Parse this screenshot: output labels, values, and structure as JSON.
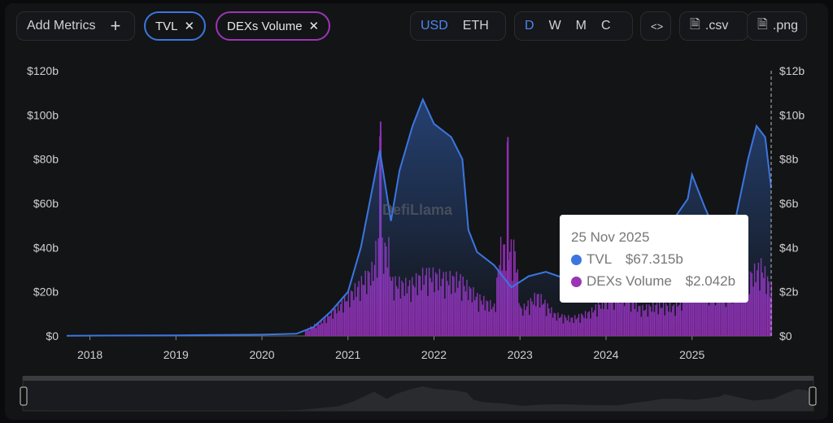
{
  "toolbar": {
    "add_metrics": "Add Metrics",
    "plus": "+",
    "metrics": [
      {
        "label": "TVL",
        "color": "#3b76e0"
      },
      {
        "label": "DEXs Volume",
        "color": "#9b35b5"
      }
    ],
    "close": "✕",
    "currency": [
      "USD",
      "ETH"
    ],
    "currency_active": "USD",
    "intervals": [
      "D",
      "W",
      "M",
      "C"
    ],
    "interval_active": "D",
    "embed": "<>",
    "csv": ".csv",
    "png": ".png"
  },
  "watermark": "DefiLlama",
  "tooltip": {
    "date": "25 Nov 2025",
    "rows": [
      {
        "label": "TVL",
        "value": "$67.315b",
        "color": "#3b76e0"
      },
      {
        "label": "DEXs Volume",
        "value": "$2.042b",
        "color": "#9b35b5"
      }
    ]
  },
  "chart_data": {
    "type": "line+bar",
    "x_ticks": [
      "2018",
      "2019",
      "2020",
      "2021",
      "2022",
      "2023",
      "2024",
      "2025"
    ],
    "y_left_ticks": [
      "$0",
      "$20b",
      "$40b",
      "$60b",
      "$80b",
      "$100b",
      "$120b"
    ],
    "y_right_ticks": [
      "$0",
      "$2b",
      "$4b",
      "$6b",
      "$8b",
      "$10b",
      "$12b"
    ],
    "y_left_range": [
      0,
      120
    ],
    "y_right_range": [
      0,
      12
    ],
    "x_range": [
      2017.73,
      2025.92
    ],
    "series": [
      {
        "name": "TVL",
        "axis": "left",
        "type": "line",
        "color": "#3b76e0",
        "x": [
          2017.73,
          2019,
          2020,
          2020.4,
          2020.6,
          2020.8,
          2021,
          2021.15,
          2021.3,
          2021.37,
          2021.5,
          2021.6,
          2021.75,
          2021.87,
          2022.0,
          2022.2,
          2022.33,
          2022.4,
          2022.5,
          2022.7,
          2022.9,
          2023.1,
          2023.3,
          2023.6,
          2023.9,
          2024.0,
          2024.2,
          2024.35,
          2024.5,
          2024.7,
          2024.95,
          2025.0,
          2025.15,
          2025.3,
          2025.5,
          2025.65,
          2025.75,
          2025.85,
          2025.92
        ],
        "y": [
          0.1,
          0.3,
          0.6,
          1,
          4,
          11,
          20,
          40,
          70,
          84,
          52,
          75,
          95,
          107,
          96,
          90,
          80,
          48,
          38,
          32,
          22,
          27,
          29,
          25,
          24,
          31,
          42,
          52,
          53,
          48,
          62,
          73,
          58,
          45,
          52,
          80,
          95,
          90,
          67
        ]
      },
      {
        "name": "DEXs Volume",
        "axis": "right",
        "type": "bar",
        "color": "#9b35b5",
        "x": [
          2020.5,
          2020.7,
          2020.9,
          2021.1,
          2021.3,
          2021.37,
          2021.5,
          2021.7,
          2021.9,
          2022.1,
          2022.3,
          2022.5,
          2022.7,
          2022.85,
          2023.0,
          2023.2,
          2023.4,
          2023.6,
          2023.8,
          2024.0,
          2024.2,
          2024.4,
          2024.6,
          2024.8,
          2025.0,
          2025.2,
          2025.4,
          2025.6,
          2025.8,
          2025.9
        ],
        "y": [
          0.3,
          0.8,
          1.6,
          2.5,
          3.5,
          9.7,
          2.8,
          2.6,
          3.2,
          3,
          2.9,
          2,
          1.5,
          9,
          1.3,
          2.1,
          1.1,
          0.9,
          1.2,
          1.9,
          2.2,
          1.4,
          1.6,
          1.5,
          2.6,
          2.3,
          2.2,
          2.8,
          3.6,
          2.6
        ]
      }
    ]
  }
}
